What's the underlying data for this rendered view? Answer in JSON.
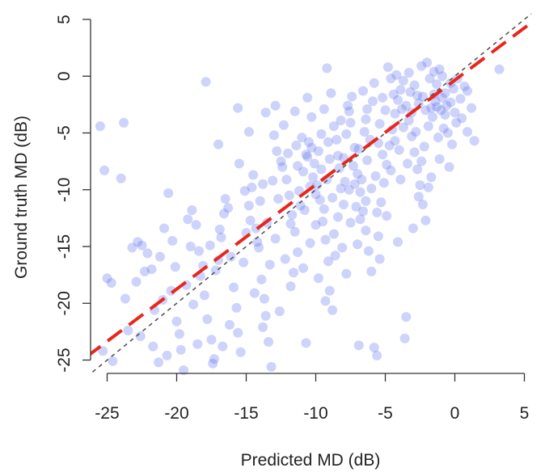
{
  "chart_data": {
    "type": "scatter",
    "xlabel": "Predicted MD (dB)",
    "ylabel": "Ground truth MD (dB)",
    "xlim": [
      -26.5,
      5.5
    ],
    "ylim": [
      -26.5,
      5.5
    ],
    "x_ticks": [
      "-25",
      "-20",
      "-15",
      "-10",
      "-5",
      "0",
      "5"
    ],
    "y_ticks": [
      "-25",
      "-20",
      "-15",
      "-10",
      "-5",
      "0",
      "5"
    ],
    "grid": false,
    "legend": "none",
    "point_color": "#5a6cf0",
    "identity_line_color": "#555555",
    "regression_line_color": "#e8261d",
    "regression_line": {
      "slope": 0.92,
      "intercept": -0.35
    },
    "series": [
      {
        "points": [
          [
            -25.5,
            -4.4
          ],
          [
            -25.2,
            -8.3
          ],
          [
            -23.8,
            -4.1
          ],
          [
            -24.0,
            -9.0
          ],
          [
            -25.0,
            -17.8
          ],
          [
            -24.7,
            -18.2
          ],
          [
            -25.3,
            -24.2
          ],
          [
            -24.6,
            -25.1
          ],
          [
            -23.7,
            -19.6
          ],
          [
            -23.5,
            -22.4
          ],
          [
            -23.2,
            -15.1
          ],
          [
            -22.8,
            -14.6
          ],
          [
            -22.5,
            -14.9
          ],
          [
            -22.1,
            -15.6
          ],
          [
            -22.3,
            -17.2
          ],
          [
            -22.6,
            -22.9
          ],
          [
            -21.7,
            -23.8
          ],
          [
            -21.3,
            -25.2
          ],
          [
            -21.0,
            -19.7
          ],
          [
            -20.9,
            -13.4
          ],
          [
            -21.2,
            -15.9
          ],
          [
            -20.6,
            -10.3
          ],
          [
            -20.3,
            -14.5
          ],
          [
            -20.1,
            -16.8
          ],
          [
            -20.0,
            -21.6
          ],
          [
            -19.7,
            -24.1
          ],
          [
            -19.5,
            -25.9
          ],
          [
            -19.3,
            -18.4
          ],
          [
            -19.2,
            -12.6
          ],
          [
            -18.9,
            -11.8
          ],
          [
            -18.6,
            -13.1
          ],
          [
            -18.4,
            -15.4
          ],
          [
            -18.1,
            -16.7
          ],
          [
            -18.0,
            -19.3
          ],
          [
            -17.8,
            -21.4
          ],
          [
            -17.5,
            -23.2
          ],
          [
            -17.3,
            -24.9
          ],
          [
            -17.2,
            -17.1
          ],
          [
            -17.0,
            -16.2
          ],
          [
            -16.8,
            -14.2
          ],
          [
            -16.6,
            -12.1
          ],
          [
            -16.5,
            -10.8
          ],
          [
            -16.3,
            -11.6
          ],
          [
            -16.1,
            -15.9
          ],
          [
            -15.9,
            -18.6
          ],
          [
            -15.7,
            -20.4
          ],
          [
            -15.6,
            -22.6
          ],
          [
            -15.4,
            -24.3
          ],
          [
            -15.2,
            -16.4
          ],
          [
            -15.0,
            -13.8
          ],
          [
            -14.8,
            -11.4
          ],
          [
            -14.6,
            -9.8
          ],
          [
            -14.5,
            -8.7
          ],
          [
            -14.3,
            -13.4
          ],
          [
            -14.1,
            -15.1
          ],
          [
            -13.9,
            -17.9
          ],
          [
            -13.7,
            -19.6
          ],
          [
            -13.6,
            -21.1
          ],
          [
            -13.4,
            -23.4
          ],
          [
            -13.2,
            -25.6
          ],
          [
            -17.9,
            -0.5
          ],
          [
            -17.0,
            -6.0
          ],
          [
            -15.6,
            -2.8
          ],
          [
            -14.8,
            -4.9
          ],
          [
            -13.6,
            -3.2
          ],
          [
            -13.0,
            -5.2
          ],
          [
            -12.8,
            -6.6
          ],
          [
            -12.5,
            -7.5
          ],
          [
            -12.3,
            -4.3
          ],
          [
            -12.1,
            -9.1
          ],
          [
            -11.9,
            -10.5
          ],
          [
            -11.7,
            -12.2
          ],
          [
            -11.5,
            -13.7
          ],
          [
            -11.3,
            -15.5
          ],
          [
            -11.1,
            -11.4
          ],
          [
            -10.9,
            -8.4
          ],
          [
            -10.7,
            -6.9
          ],
          [
            -10.5,
            -5.8
          ],
          [
            -10.3,
            -3.6
          ],
          [
            -10.1,
            -7.7
          ],
          [
            -9.9,
            -9.6
          ],
          [
            -9.7,
            -10.9
          ],
          [
            -9.5,
            -12.8
          ],
          [
            -9.3,
            -14.4
          ],
          [
            -9.1,
            -16.3
          ],
          [
            -9.0,
            -18.9
          ],
          [
            -8.8,
            -20.6
          ],
          [
            -8.6,
            -15.8
          ],
          [
            -8.4,
            -12.4
          ],
          [
            -8.2,
            -9.9
          ],
          [
            -8.0,
            -7.2
          ],
          [
            -7.8,
            -5.1
          ],
          [
            -7.6,
            -3.1
          ],
          [
            -7.4,
            -1.8
          ],
          [
            -7.2,
            -6.3
          ],
          [
            -7.0,
            -8.6
          ],
          [
            -6.8,
            -10.2
          ],
          [
            -6.6,
            -11.9
          ],
          [
            -6.4,
            -13.6
          ],
          [
            -6.2,
            -15.4
          ],
          [
            -6.0,
            -17.2
          ],
          [
            -5.8,
            -23.9
          ],
          [
            -5.6,
            -24.6
          ],
          [
            -5.5,
            -14.1
          ],
          [
            -5.3,
            -11.1
          ],
          [
            -5.1,
            -9.4
          ],
          [
            -4.9,
            -7.8
          ],
          [
            -4.7,
            -6.1
          ],
          [
            -4.5,
            -4.7
          ],
          [
            -4.3,
            -3.3
          ],
          [
            -4.1,
            -2.1
          ],
          [
            -3.9,
            -1.2
          ],
          [
            -3.7,
            -0.4
          ],
          [
            -3.5,
            -2.6
          ],
          [
            -3.3,
            -3.9
          ],
          [
            -3.1,
            -5.3
          ],
          [
            -2.9,
            -6.7
          ],
          [
            -2.7,
            -8.2
          ],
          [
            -2.5,
            -9.6
          ],
          [
            -2.3,
            -11.3
          ],
          [
            -2.1,
            -12.7
          ],
          [
            -1.9,
            -4.4
          ],
          [
            -1.7,
            -2.8
          ],
          [
            -1.5,
            -1.6
          ],
          [
            -1.3,
            -0.7
          ],
          [
            -1.1,
            0.6
          ],
          [
            -0.9,
            -1.9
          ],
          [
            -0.7,
            -3.4
          ],
          [
            -0.5,
            -5.0
          ],
          [
            -0.3,
            -2.3
          ],
          [
            -0.1,
            -1.1
          ],
          [
            0.2,
            -0.2
          ],
          [
            0.5,
            -3.7
          ],
          [
            0.9,
            -1.3
          ],
          [
            1.2,
            -2.8
          ],
          [
            1.4,
            -5.7
          ],
          [
            3.2,
            0.6
          ],
          [
            -9.2,
            0.7
          ],
          [
            -8.9,
            -1.5
          ],
          [
            -6.4,
            -3.8
          ],
          [
            -5.9,
            -2.2
          ],
          [
            -4.8,
            0.8
          ],
          [
            -4.2,
            0.1
          ],
          [
            -2.4,
            0.9
          ],
          [
            -2.0,
            1.2
          ],
          [
            -1.0,
            -3.0
          ],
          [
            -3.6,
            -23.1
          ],
          [
            -6.9,
            -23.7
          ],
          [
            -10.7,
            -23.5
          ],
          [
            -12.9,
            -14.3
          ],
          [
            -12.2,
            -16.1
          ],
          [
            -11.6,
            -17.3
          ],
          [
            -10.4,
            -14.7
          ],
          [
            -10.0,
            -13.1
          ],
          [
            -9.4,
            -11.7
          ],
          [
            -8.7,
            -13.9
          ],
          [
            -8.1,
            -15.1
          ],
          [
            -7.5,
            -12.9
          ],
          [
            -7.1,
            -11.5
          ],
          [
            -6.7,
            -9.1
          ],
          [
            -6.3,
            -7.4
          ],
          [
            -5.7,
            -8.8
          ],
          [
            -5.2,
            -6.9
          ],
          [
            -4.6,
            -8.3
          ],
          [
            -4.0,
            -6.5
          ],
          [
            -3.4,
            -7.7
          ],
          [
            -2.8,
            -4.9
          ],
          [
            -2.2,
            -6.2
          ],
          [
            -1.6,
            -3.6
          ],
          [
            -1.2,
            -5.4
          ],
          [
            -0.6,
            -2.6
          ],
          [
            0.1,
            -4.1
          ],
          [
            0.7,
            -0.9
          ],
          [
            -11.4,
            -6.1
          ],
          [
            -11.0,
            -5.4
          ],
          [
            -10.6,
            -7.1
          ],
          [
            -10.2,
            -8.9
          ],
          [
            -9.8,
            -6.6
          ],
          [
            -9.6,
            -5.1
          ],
          [
            -9.0,
            -7.3
          ],
          [
            -8.5,
            -5.6
          ],
          [
            -8.3,
            -8.1
          ],
          [
            -7.9,
            -9.3
          ],
          [
            -7.3,
            -7.9
          ],
          [
            -6.9,
            -6.4
          ],
          [
            -6.5,
            -4.9
          ],
          [
            -6.1,
            -5.6
          ],
          [
            -5.4,
            -4.2
          ],
          [
            -5.0,
            -3.0
          ],
          [
            -4.4,
            -1.6
          ],
          [
            -3.8,
            -2.9
          ],
          [
            -3.2,
            -1.4
          ],
          [
            -2.6,
            -2.4
          ],
          [
            -1.8,
            -0.2
          ],
          [
            -1.4,
            -2.2
          ],
          [
            -0.8,
            -4.6
          ],
          [
            -0.2,
            -6.0
          ],
          [
            0.4,
            -2.0
          ],
          [
            -13.1,
            -9.2
          ],
          [
            -12.7,
            -10.8
          ],
          [
            -12.4,
            -8.0
          ],
          [
            -12.0,
            -6.8
          ],
          [
            -11.8,
            -13.0
          ],
          [
            -11.2,
            -10.1
          ],
          [
            -10.8,
            -11.8
          ],
          [
            -10.4,
            -9.7
          ],
          [
            -10.0,
            -10.4
          ],
          [
            -9.6,
            -8.2
          ],
          [
            -9.2,
            -9.1
          ],
          [
            -8.8,
            -10.7
          ],
          [
            -8.4,
            -7.0
          ],
          [
            -8.0,
            -11.3
          ],
          [
            -7.6,
            -10.0
          ],
          [
            -7.2,
            -9.5
          ],
          [
            -6.8,
            -12.6
          ],
          [
            -6.4,
            -11.0
          ],
          [
            -6.0,
            -9.9
          ],
          [
            -5.6,
            -12.0
          ],
          [
            -15.5,
            -7.7
          ],
          [
            -15.1,
            -10.1
          ],
          [
            -14.7,
            -12.7
          ],
          [
            -14.2,
            -14.6
          ],
          [
            -14.0,
            -11.0
          ],
          [
            -13.8,
            -9.5
          ],
          [
            -13.5,
            -12.9
          ],
          [
            -13.3,
            -16.6
          ],
          [
            -16.9,
            -13.5
          ],
          [
            -17.6,
            -14.9
          ],
          [
            -18.3,
            -17.6
          ],
          [
            -18.8,
            -20.1
          ],
          [
            -19.8,
            -22.7
          ],
          [
            -20.4,
            -18.9
          ],
          [
            -21.6,
            -20.6
          ],
          [
            -22.9,
            -18.1
          ],
          [
            -16.2,
            -21.9
          ],
          [
            -16.7,
            -23.8
          ],
          [
            -17.4,
            -25.3
          ],
          [
            -18.5,
            -23.6
          ],
          [
            -19.0,
            -15.0
          ],
          [
            -20.7,
            -24.6
          ],
          [
            -21.8,
            -17.0
          ],
          [
            -14.4,
            -19.1
          ],
          [
            -13.8,
            -22.1
          ],
          [
            -12.6,
            -20.7
          ],
          [
            -11.8,
            -18.5
          ],
          [
            -10.9,
            -16.9
          ],
          [
            -9.8,
            -17.8
          ],
          [
            -9.3,
            -19.8
          ],
          [
            -7.8,
            -17.4
          ],
          [
            -7.0,
            -14.8
          ],
          [
            -5.4,
            -16.1
          ],
          [
            -4.1,
            -14.6
          ],
          [
            -3.0,
            -13.4
          ],
          [
            -2.6,
            -10.6
          ],
          [
            -1.7,
            -8.9
          ],
          [
            -1.1,
            -7.3
          ],
          [
            -0.4,
            -8.0
          ],
          [
            0.9,
            -4.9
          ],
          [
            -3.5,
            -21.2
          ],
          [
            -4.9,
            -12.3
          ],
          [
            -3.9,
            -9.1
          ],
          [
            -2.4,
            -7.5
          ],
          [
            -1.9,
            -9.8
          ],
          [
            -12.9,
            -2.6
          ],
          [
            -11.5,
            -3.1
          ],
          [
            -10.6,
            -1.9
          ],
          [
            -9.4,
            -2.9
          ],
          [
            -8.2,
            -3.9
          ],
          [
            -7.7,
            -2.6
          ],
          [
            -6.6,
            -1.3
          ],
          [
            -5.8,
            -0.6
          ],
          [
            -5.2,
            -1.9
          ],
          [
            -4.6,
            -0.2
          ],
          [
            -3.3,
            0.3
          ],
          [
            -2.9,
            -0.8
          ],
          [
            -2.3,
            -1.8
          ],
          [
            -1.5,
            0.4
          ],
          [
            -0.9,
            0.0
          ],
          [
            -0.3,
            -0.6
          ],
          [
            -11.3,
            -7.9
          ],
          [
            -10.3,
            -6.3
          ],
          [
            -9.1,
            -5.8
          ],
          [
            -8.7,
            -4.4
          ],
          [
            -7.5,
            -4.1
          ],
          [
            -6.3,
            -2.9
          ],
          [
            -5.5,
            -5.9
          ],
          [
            -4.3,
            -5.7
          ],
          [
            -3.7,
            -4.5
          ],
          [
            -3.1,
            -3.2
          ],
          [
            -2.7,
            -1.7
          ],
          [
            -2.1,
            -3.0
          ],
          [
            -1.3,
            -2.7
          ],
          [
            -0.7,
            -1.5
          ],
          [
            0.0,
            -3.2
          ]
        ]
      }
    ]
  }
}
